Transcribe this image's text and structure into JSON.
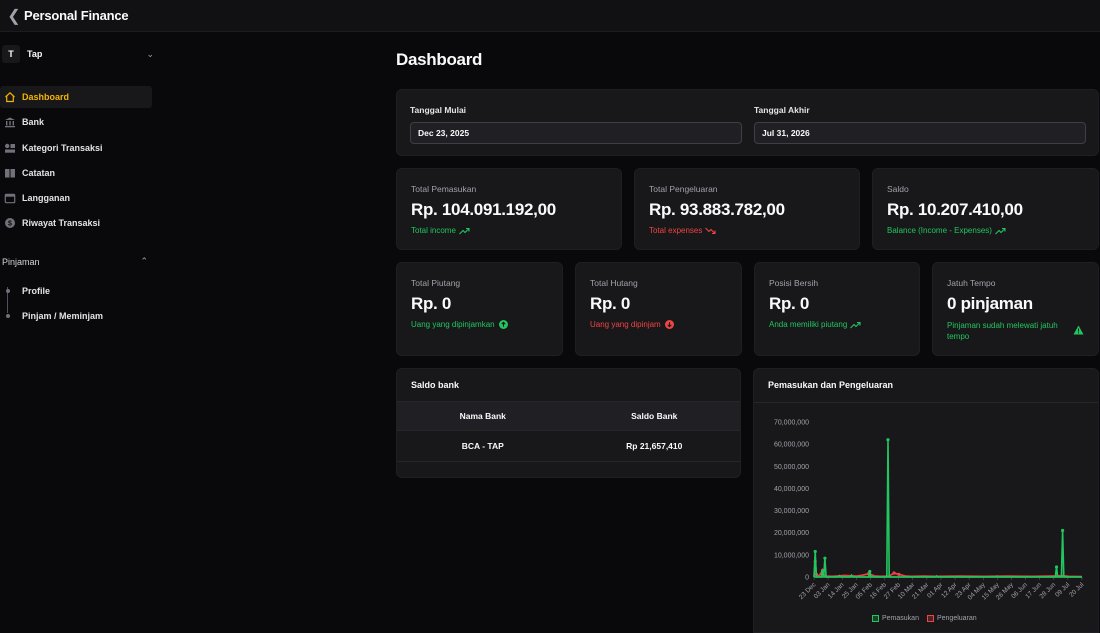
{
  "app": {
    "title": "Personal Finance"
  },
  "workspace": {
    "initial": "T",
    "name": "Tap"
  },
  "nav": [
    {
      "label": "Dashboard",
      "icon": "home-icon",
      "active": true
    },
    {
      "label": "Bank",
      "icon": "bank-icon"
    },
    {
      "label": "Kategori Transaksi",
      "icon": "category-icon"
    },
    {
      "label": "Catatan",
      "icon": "book-icon"
    },
    {
      "label": "Langganan",
      "icon": "calendar-icon"
    },
    {
      "label": "Riwayat Transaksi",
      "icon": "dollar-icon"
    }
  ],
  "loans_group": {
    "title": "Pinjaman",
    "items": [
      "Profile",
      "Pinjam / Meminjam"
    ]
  },
  "main": {
    "title": "Dashboard",
    "date_filter": {
      "start_label": "Tanggal Mulai",
      "start_value": "Dec 23, 2025",
      "end_label": "Tanggal Akhir",
      "end_value": "Jul 31, 2026"
    },
    "summary": [
      {
        "label": "Total Pemasukan",
        "value": "Rp. 104.091.192,00",
        "sub": "Total income",
        "tone": "green",
        "icon": "trend-up-icon"
      },
      {
        "label": "Total Pengeluaran",
        "value": "Rp. 93.883.782,00",
        "sub": "Total expenses",
        "tone": "red",
        "icon": "trend-down-icon"
      },
      {
        "label": "Saldo",
        "value": "Rp. 10.207.410,00",
        "sub": "Balance (Income - Expenses)",
        "tone": "green",
        "icon": "trend-up-icon"
      }
    ],
    "loans": [
      {
        "label": "Total Piutang",
        "value": "Rp. 0",
        "sub": "Uang yang dipinjamkan",
        "tone": "green",
        "icon": "arrow-up-circle-icon"
      },
      {
        "label": "Total Hutang",
        "value": "Rp. 0",
        "sub": "Uang yang dipinjam",
        "tone": "red",
        "icon": "arrow-down-circle-icon"
      },
      {
        "label": "Posisi Bersih",
        "value": "Rp. 0",
        "sub": "Anda memiliki piutang",
        "tone": "green",
        "icon": "trend-up-icon"
      },
      {
        "label": "Jatuh Tempo",
        "value": "0 pinjaman",
        "sub": "Pinjaman sudah melewati jatuh tempo",
        "tone": "green",
        "icon": "warning-icon"
      }
    ],
    "bank_balance": {
      "title": "Saldo bank",
      "headers": [
        "Nama Bank",
        "Saldo Bank"
      ],
      "rows": [
        [
          "BCA - TAP",
          "Rp 21,657,410"
        ]
      ]
    }
  },
  "colors": {
    "accent": "#f5b301",
    "income": "#22c55e",
    "expense": "#ef4444"
  },
  "chart_data": {
    "type": "line",
    "title": "Pemasukan dan Pengeluaran",
    "ylim": [
      0,
      70000000
    ],
    "yticks": [
      "0",
      "10,000,000",
      "20,000,000",
      "30,000,000",
      "40,000,000",
      "50,000,000",
      "60,000,000",
      "70,000,000"
    ],
    "xticks": [
      "23 Dec",
      "03 Jan",
      "14 Jan",
      "25 Jan",
      "05 Feb",
      "16 Feb",
      "27 Feb",
      "10 Mar",
      "21 Mar",
      "01 Apr",
      "12 Apr",
      "23 Apr",
      "04 May",
      "15 May",
      "26 May",
      "06 Jun",
      "17 Jun",
      "28 Jun",
      "09 Jul",
      "20 Jul"
    ],
    "x_range_days": [
      0,
      221
    ],
    "grid": false,
    "legend": "bottom",
    "series": [
      {
        "name": "Pemasukan",
        "color": "#22c55e",
        "points": [
          [
            0,
            0
          ],
          [
            1,
            11500000
          ],
          [
            2,
            0
          ],
          [
            6,
            0
          ],
          [
            7,
            2500000
          ],
          [
            8,
            0
          ],
          [
            9,
            8500000
          ],
          [
            10,
            0
          ],
          [
            20,
            0
          ],
          [
            21,
            600000
          ],
          [
            22,
            0
          ],
          [
            30,
            0
          ],
          [
            31,
            800000
          ],
          [
            32,
            0
          ],
          [
            45,
            0
          ],
          [
            46,
            2500000
          ],
          [
            47,
            0
          ],
          [
            60,
            0
          ],
          [
            61,
            62000000
          ],
          [
            62,
            0
          ],
          [
            100,
            0
          ],
          [
            101,
            500000
          ],
          [
            102,
            0
          ],
          [
            150,
            0
          ],
          [
            151,
            400000
          ],
          [
            152,
            0
          ],
          [
            199,
            0
          ],
          [
            200,
            4500000
          ],
          [
            201,
            0
          ],
          [
            204,
            0
          ],
          [
            205,
            21000000
          ],
          [
            206,
            0
          ],
          [
            221,
            0
          ]
        ]
      },
      {
        "name": "Pengeluaran",
        "color": "#ef4444",
        "points": [
          [
            0,
            0
          ],
          [
            1,
            7000000
          ],
          [
            2,
            1200000
          ],
          [
            4,
            600000
          ],
          [
            6,
            1500000
          ],
          [
            7,
            3000000
          ],
          [
            8,
            900000
          ],
          [
            10,
            400000
          ],
          [
            15,
            300000
          ],
          [
            20,
            500000
          ],
          [
            25,
            700000
          ],
          [
            30,
            600000
          ],
          [
            35,
            400000
          ],
          [
            40,
            800000
          ],
          [
            45,
            1500000
          ],
          [
            50,
            500000
          ],
          [
            55,
            300000
          ],
          [
            62,
            400000
          ],
          [
            66,
            1800000
          ],
          [
            70,
            1200000
          ],
          [
            75,
            500000
          ],
          [
            80,
            300000
          ],
          [
            90,
            400000
          ],
          [
            100,
            300000
          ],
          [
            120,
            400000
          ],
          [
            140,
            300000
          ],
          [
            160,
            400000
          ],
          [
            180,
            300000
          ],
          [
            200,
            500000
          ],
          [
            205,
            600000
          ],
          [
            210,
            300000
          ],
          [
            221,
            200000
          ]
        ]
      }
    ]
  }
}
